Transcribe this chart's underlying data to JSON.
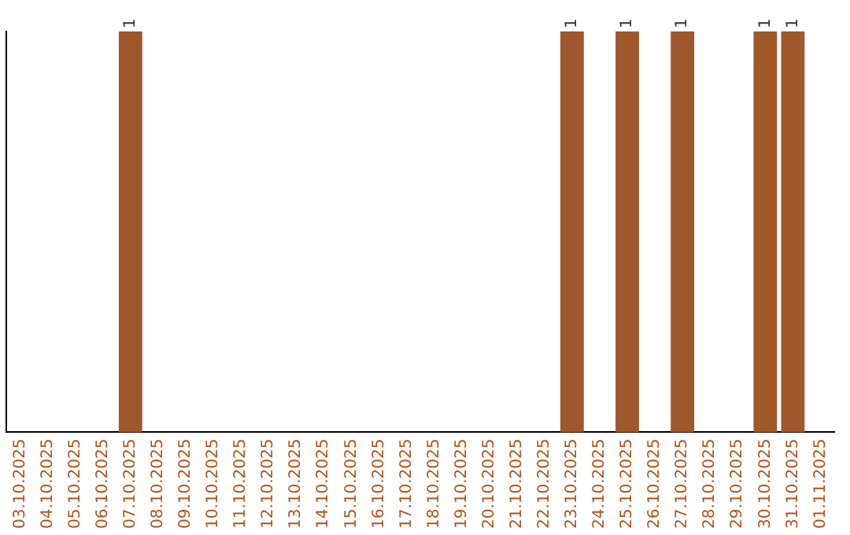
{
  "chart_data": {
    "type": "bar",
    "categories": [
      "03.10.2025",
      "04.10.2025",
      "05.10.2025",
      "06.10.2025",
      "07.10.2025",
      "08.10.2025",
      "09.10.2025",
      "10.10.2025",
      "11.10.2025",
      "12.10.2025",
      "13.10.2025",
      "14.10.2025",
      "15.10.2025",
      "16.10.2025",
      "17.10.2025",
      "18.10.2025",
      "19.10.2025",
      "20.10.2025",
      "21.10.2025",
      "22.10.2025",
      "23.10.2025",
      "24.10.2025",
      "25.10.2025",
      "26.10.2025",
      "27.10.2025",
      "28.10.2025",
      "29.10.2025",
      "30.10.2025",
      "31.10.2025",
      "01.11.2025"
    ],
    "values": [
      0,
      0,
      0,
      0,
      1,
      0,
      0,
      0,
      0,
      0,
      0,
      0,
      0,
      0,
      0,
      0,
      0,
      0,
      0,
      0,
      1,
      0,
      1,
      0,
      1,
      0,
      0,
      1,
      1,
      0
    ],
    "value_labels": [
      null,
      null,
      null,
      null,
      "1",
      null,
      null,
      null,
      null,
      null,
      null,
      null,
      null,
      null,
      null,
      null,
      null,
      null,
      null,
      null,
      "1",
      null,
      "1",
      null,
      "1",
      null,
      null,
      "1",
      "1",
      null
    ],
    "color": "#a0582a",
    "grid": false,
    "legend": false,
    "tick_labels": "x"
  }
}
